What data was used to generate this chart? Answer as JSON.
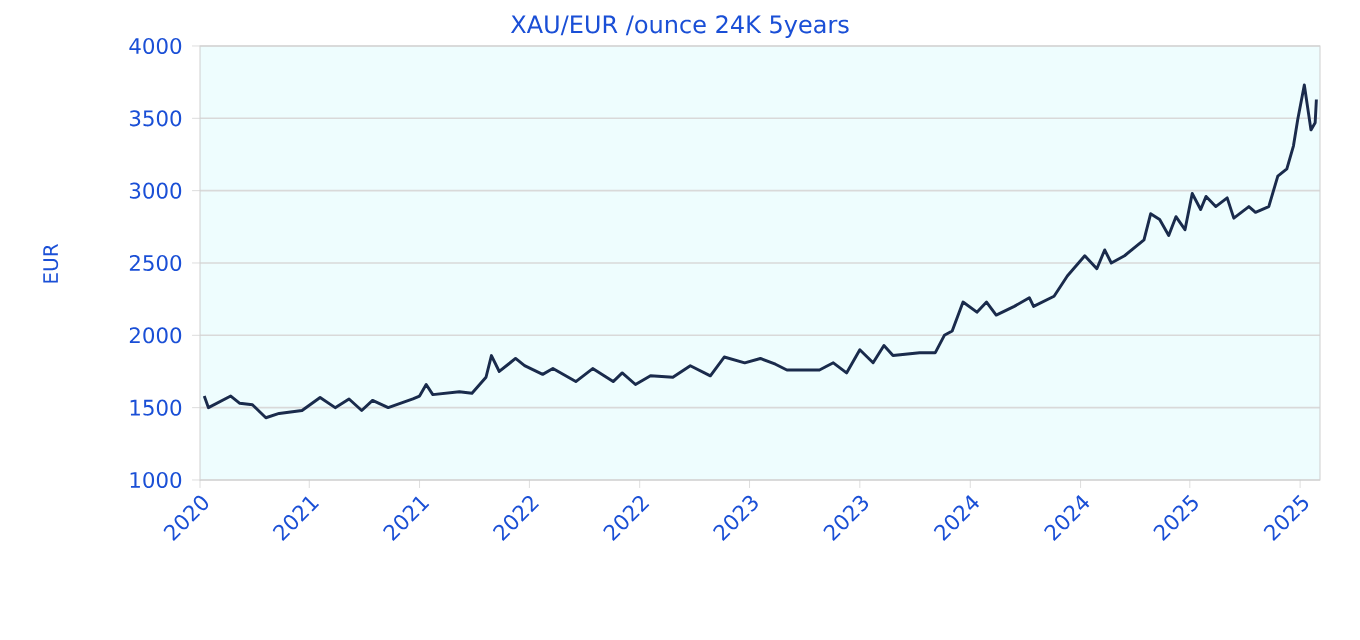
{
  "chart_data": {
    "type": "line",
    "title": "XAU/EUR /ounce 24K 5years",
    "ylabel": "EUR",
    "x": [
      "2020-10-08",
      "2020-10-15",
      "2020-11-21",
      "2020-12-06",
      "2020-12-27",
      "2021-01-19",
      "2021-02-10",
      "2021-03-20",
      "2021-04-19",
      "2021-05-14",
      "2021-06-06",
      "2021-06-27",
      "2021-07-15",
      "2021-08-10",
      "2021-09-20",
      "2021-10-01",
      "2021-10-12",
      "2021-10-23",
      "2021-12-06",
      "2021-12-27",
      "2022-01-19",
      "2022-01-28",
      "2022-02-10",
      "2022-02-25",
      "2022-03-09",
      "2022-03-24",
      "2022-04-23",
      "2022-05-10",
      "2022-06-17",
      "2022-07-15",
      "2022-08-18",
      "2022-09-02",
      "2022-09-24",
      "2022-10-19",
      "2022-11-25",
      "2022-12-24",
      "2023-01-26",
      "2023-02-18",
      "2023-03-24",
      "2023-04-19",
      "2023-05-14",
      "2023-06-02",
      "2023-07-26",
      "2023-08-18",
      "2023-09-09",
      "2023-10-01",
      "2023-10-23",
      "2023-11-10",
      "2023-11-25",
      "2024-01-08",
      "2024-02-03",
      "2024-02-18",
      "2024-03-02",
      "2024-03-20",
      "2024-04-12",
      "2024-04-28",
      "2024-05-14",
      "2024-06-13",
      "2024-07-08",
      "2024-07-15",
      "2024-08-18",
      "2024-09-09",
      "2024-10-08",
      "2024-10-28",
      "2024-11-10",
      "2024-11-21",
      "2024-12-13",
      "2025-01-15",
      "2025-01-26",
      "2025-02-10",
      "2025-02-25",
      "2025-03-09",
      "2025-03-24",
      "2025-04-05",
      "2025-04-19",
      "2025-04-28",
      "2025-05-14",
      "2025-06-02",
      "2025-06-13",
      "2025-07-08",
      "2025-07-19",
      "2025-08-10",
      "2025-08-25",
      "2025-09-09",
      "2025-09-20",
      "2025-09-27",
      "2025-10-08",
      "2025-10-19",
      "2025-10-26",
      "2025-10-28"
    ],
    "series": [
      {
        "color": "#1a2b4c",
        "values": [
          1580,
          1500,
          1580,
          1530,
          1520,
          1430,
          1460,
          1480,
          1570,
          1500,
          1560,
          1480,
          1550,
          1500,
          1560,
          1580,
          1660,
          1590,
          1610,
          1600,
          1710,
          1860,
          1750,
          1800,
          1840,
          1790,
          1730,
          1770,
          1680,
          1770,
          1680,
          1740,
          1660,
          1720,
          1710,
          1790,
          1720,
          1850,
          1810,
          1840,
          1800,
          1760,
          1760,
          1810,
          1740,
          1900,
          1810,
          1930,
          1860,
          1880,
          1880,
          2000,
          2030,
          2230,
          2160,
          2230,
          2140,
          2200,
          2260,
          2200,
          2270,
          2410,
          2550,
          2460,
          2590,
          2500,
          2550,
          2660,
          2840,
          2800,
          2690,
          2820,
          2730,
          2980,
          2870,
          2960,
          2890,
          2950,
          2810,
          2890,
          2850,
          2890,
          3100,
          3150,
          3310,
          3490,
          3730,
          3420,
          3470,
          3630
        ]
      }
    ],
    "xlim": [
      "2020-10-01",
      "2025-11-03"
    ],
    "xticks": [
      {
        "value": "2020-10-01",
        "label": "2020"
      },
      {
        "value": "2021-04-01",
        "label": "2021"
      },
      {
        "value": "2021-10-01",
        "label": "2021"
      },
      {
        "value": "2022-04-01",
        "label": "2022"
      },
      {
        "value": "2022-10-01",
        "label": "2022"
      },
      {
        "value": "2023-04-01",
        "label": "2023"
      },
      {
        "value": "2023-10-01",
        "label": "2023"
      },
      {
        "value": "2024-04-01",
        "label": "2024"
      },
      {
        "value": "2024-10-01",
        "label": "2024"
      },
      {
        "value": "2025-04-01",
        "label": "2025"
      },
      {
        "value": "2025-10-01",
        "label": "2025"
      }
    ],
    "ylim": [
      1000,
      4000
    ],
    "yticks": [
      1000,
      1500,
      2000,
      2500,
      3000,
      3500,
      4000
    ],
    "grid": "y",
    "line_style": "solid"
  }
}
